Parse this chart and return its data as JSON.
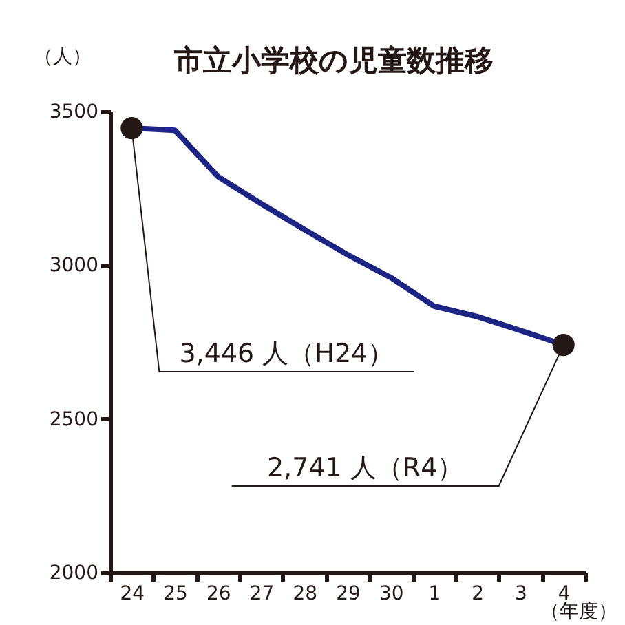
{
  "chart_data": {
    "type": "line",
    "title": "市立小学校の児童数推移",
    "ylabel": "（人）",
    "xlabel": "（年度）",
    "categories": [
      "24",
      "25",
      "26",
      "27",
      "28",
      "29",
      "30",
      "1",
      "2",
      "3",
      "4"
    ],
    "series": [
      {
        "color": "#1c2584",
        "values": [
          3446,
          3439,
          3288,
          3200,
          3116,
          3034,
          2960,
          2867,
          2833,
          2788,
          2741
        ]
      },
      {
        "type": "scatter",
        "marker": "circle",
        "color": "#231815",
        "x": [
          "24",
          "4"
        ],
        "values": [
          3446,
          2741
        ]
      }
    ],
    "ylim": [
      2000,
      3500
    ],
    "yticks": [
      2000,
      2500,
      3000,
      3500
    ],
    "grid": false,
    "annotations": [
      {
        "text": "3,446 人（H24）",
        "x": "24",
        "y": 3446
      },
      {
        "text": "2,741 人（R4）",
        "x": "4",
        "y": 2741
      }
    ]
  }
}
